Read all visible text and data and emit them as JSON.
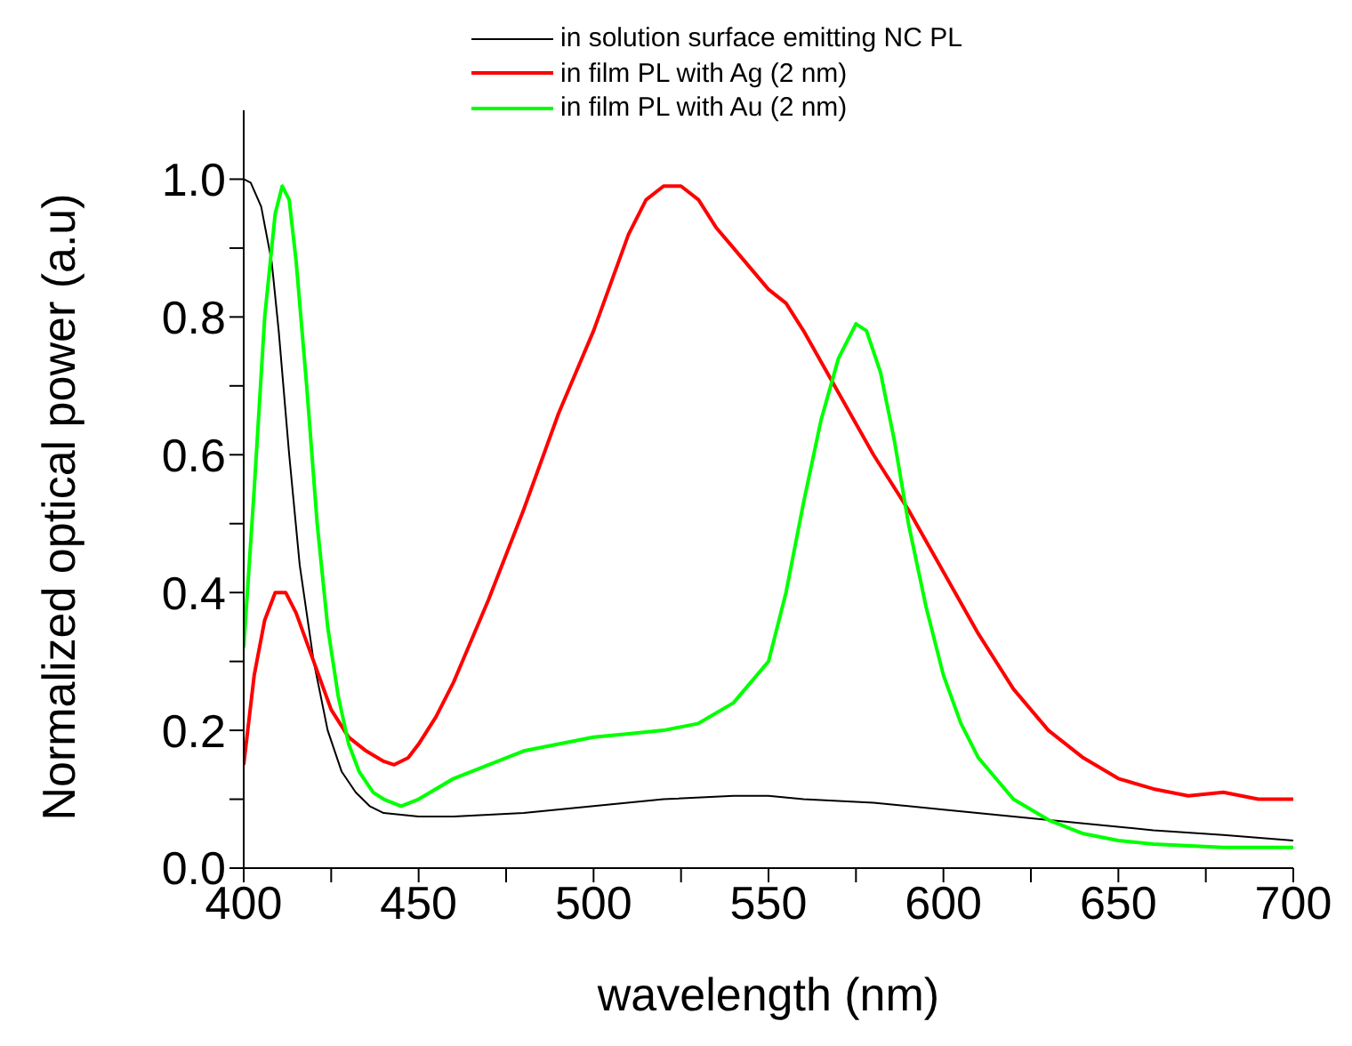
{
  "chart_data": {
    "type": "line",
    "xlabel": "wavelength (nm)",
    "ylabel": "Normalized optical power (a.u)",
    "xlim": [
      400,
      700
    ],
    "ylim": [
      0,
      1.1
    ],
    "xticks": [
      400,
      {
        "value": 425,
        "label": null
      },
      450,
      {
        "value": 475,
        "label": null
      },
      500,
      {
        "value": 525,
        "label": null
      },
      550,
      {
        "value": 575,
        "label": null
      },
      600,
      {
        "value": 625,
        "label": null
      },
      650,
      {
        "value": 675,
        "label": null
      },
      700
    ],
    "yticks": [
      {
        "value": 0,
        "label": "0.0"
      },
      {
        "value": 0.1,
        "label": null
      },
      {
        "value": 0.2,
        "label": "0.2"
      },
      {
        "value": 0.3,
        "label": null
      },
      {
        "value": 0.4,
        "label": "0.4"
      },
      {
        "value": 0.5,
        "label": null
      },
      {
        "value": 0.6,
        "label": "0.6"
      },
      {
        "value": 0.7,
        "label": null
      },
      {
        "value": 0.8,
        "label": "0.8"
      },
      {
        "value": 0.9,
        "label": null
      },
      {
        "value": 1.0,
        "label": "1.0"
      }
    ],
    "grid": false,
    "legend": "top",
    "marker": "none",
    "line_style": "solid",
    "series": [
      {
        "name": "in solution surface emitting NC PL",
        "color": "#000000",
        "x": [
          400,
          402,
          405,
          408,
          410,
          413,
          416,
          420,
          424,
          428,
          432,
          436,
          440,
          450,
          460,
          480,
          500,
          520,
          540,
          550,
          560,
          580,
          600,
          620,
          640,
          660,
          680,
          700
        ],
        "values": [
          1.0,
          0.995,
          0.96,
          0.88,
          0.78,
          0.6,
          0.44,
          0.3,
          0.2,
          0.14,
          0.11,
          0.09,
          0.08,
          0.075,
          0.075,
          0.08,
          0.09,
          0.1,
          0.105,
          0.105,
          0.1,
          0.095,
          0.085,
          0.075,
          0.065,
          0.055,
          0.048,
          0.04
        ]
      },
      {
        "name": "in film PL with Ag (2 nm)",
        "color": "#ff0000",
        "x": [
          400,
          403,
          406,
          409,
          412,
          415,
          420,
          425,
          430,
          435,
          440,
          443,
          447,
          450,
          455,
          460,
          470,
          480,
          490,
          500,
          505,
          510,
          515,
          520,
          525,
          530,
          535,
          540,
          545,
          550,
          555,
          560,
          570,
          580,
          590,
          600,
          610,
          620,
          630,
          640,
          650,
          660,
          670,
          680,
          690,
          700
        ],
        "values": [
          0.15,
          0.28,
          0.36,
          0.4,
          0.4,
          0.37,
          0.3,
          0.23,
          0.19,
          0.17,
          0.155,
          0.15,
          0.16,
          0.18,
          0.22,
          0.27,
          0.39,
          0.52,
          0.66,
          0.78,
          0.85,
          0.92,
          0.97,
          0.99,
          0.99,
          0.97,
          0.93,
          0.9,
          0.87,
          0.84,
          0.82,
          0.78,
          0.69,
          0.6,
          0.52,
          0.43,
          0.34,
          0.26,
          0.2,
          0.16,
          0.13,
          0.115,
          0.105,
          0.11,
          0.1,
          0.1
        ]
      },
      {
        "name": "in film PL with Au (2 nm)",
        "color": "#00ff00",
        "x": [
          400,
          403,
          406,
          409,
          411,
          413,
          415,
          418,
          421,
          424,
          427,
          430,
          433,
          437,
          440,
          445,
          450,
          460,
          470,
          480,
          490,
          500,
          510,
          520,
          530,
          540,
          545,
          550,
          555,
          560,
          565,
          570,
          575,
          578,
          582,
          586,
          590,
          595,
          600,
          605,
          610,
          620,
          630,
          640,
          650,
          660,
          680,
          700
        ],
        "values": [
          0.32,
          0.55,
          0.8,
          0.95,
          0.99,
          0.97,
          0.88,
          0.7,
          0.5,
          0.35,
          0.25,
          0.18,
          0.14,
          0.11,
          0.1,
          0.09,
          0.1,
          0.13,
          0.15,
          0.17,
          0.18,
          0.19,
          0.195,
          0.2,
          0.21,
          0.24,
          0.27,
          0.3,
          0.4,
          0.53,
          0.65,
          0.74,
          0.79,
          0.78,
          0.72,
          0.62,
          0.5,
          0.38,
          0.28,
          0.21,
          0.16,
          0.1,
          0.07,
          0.05,
          0.04,
          0.035,
          0.03,
          0.03
        ]
      }
    ]
  }
}
